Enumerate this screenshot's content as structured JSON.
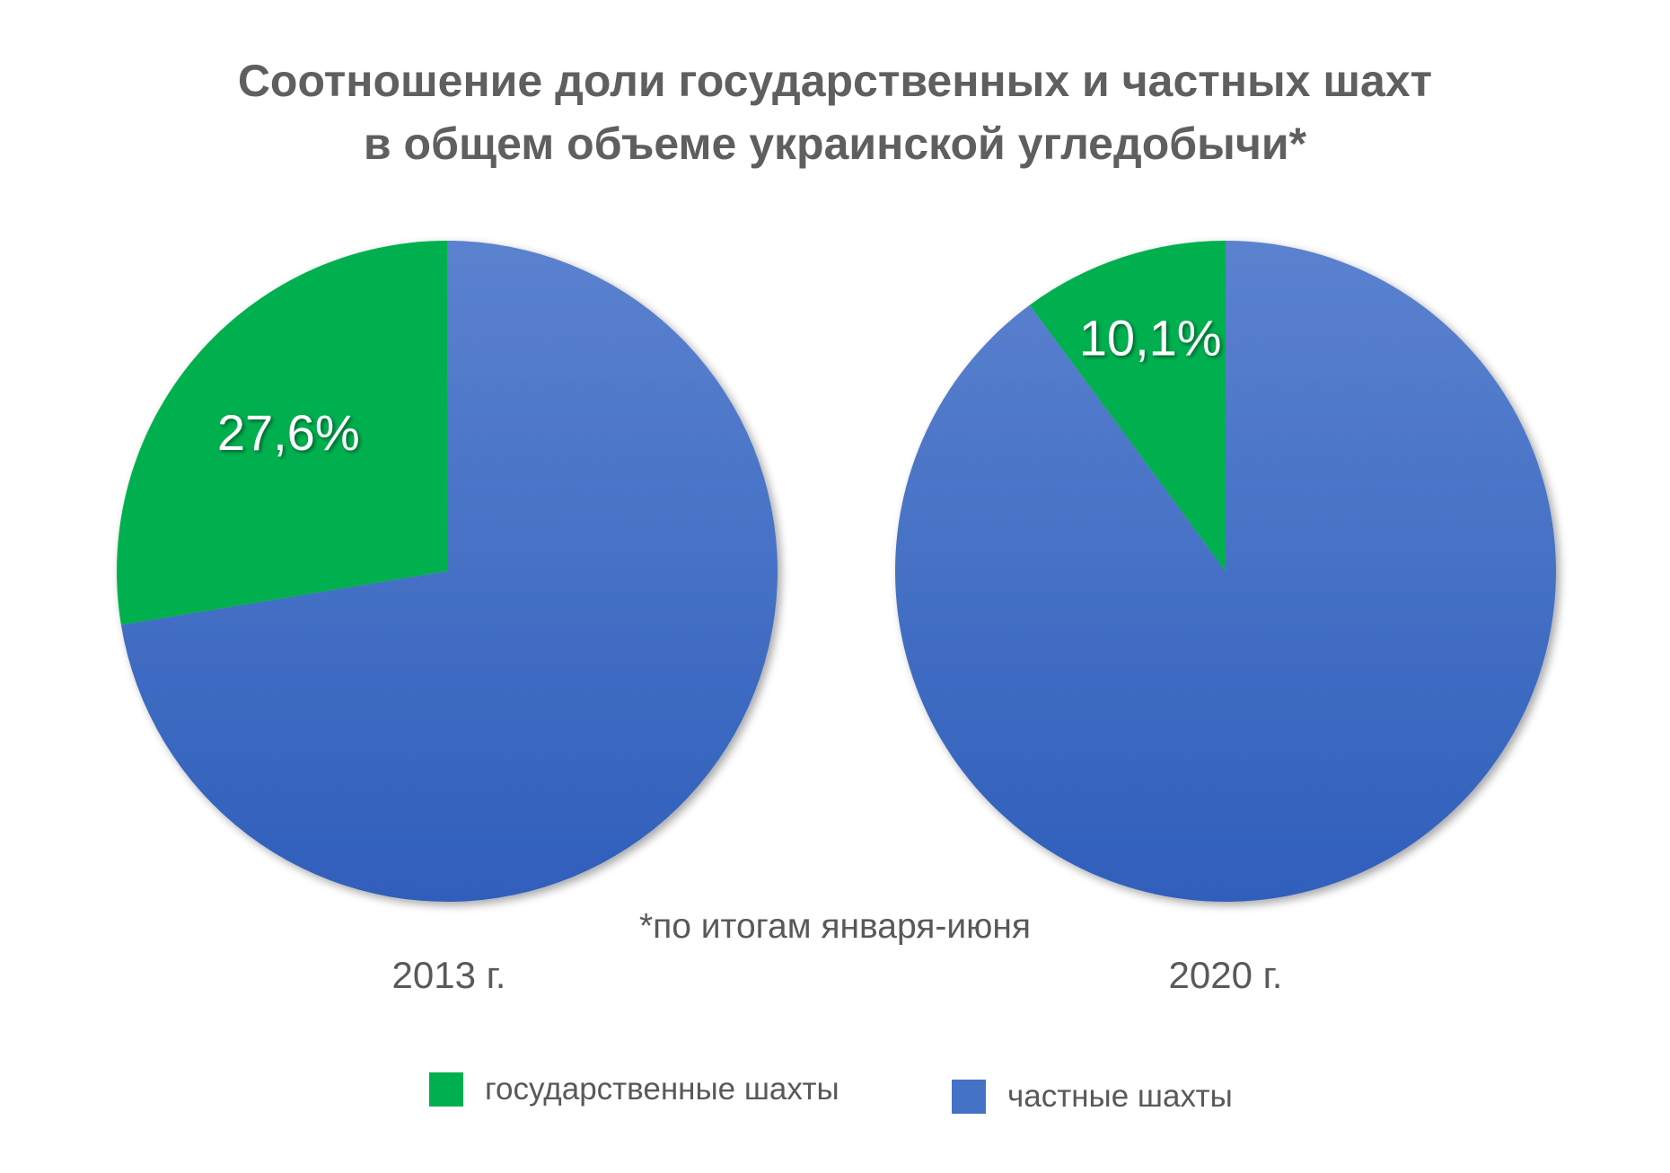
{
  "title_line1": "Соотношение доли государственных и частных шахт",
  "title_line2": "в общем объеме украинской угледобычи*",
  "footnote": "*по итогам января-июня",
  "chart_data": [
    {
      "type": "pie",
      "label": "2013 г.",
      "slices": [
        {
          "name": "государственные шахты",
          "value": 27.6,
          "label": "27,6%",
          "color": "#00b050"
        },
        {
          "name": "частные шахты",
          "value": 72.4,
          "label": "",
          "color": "#4472c4"
        }
      ]
    },
    {
      "type": "pie",
      "label": "2020 г.",
      "slices": [
        {
          "name": "государственные шахты",
          "value": 10.1,
          "label": "10,1%",
          "color": "#00b050"
        },
        {
          "name": "частные шахты",
          "value": 89.9,
          "label": "",
          "color": "#4472c4"
        }
      ]
    }
  ],
  "legend": [
    {
      "label": "государственные шахты",
      "color": "#00b050"
    },
    {
      "label": "частные шахты",
      "color": "#4472c4"
    }
  ]
}
